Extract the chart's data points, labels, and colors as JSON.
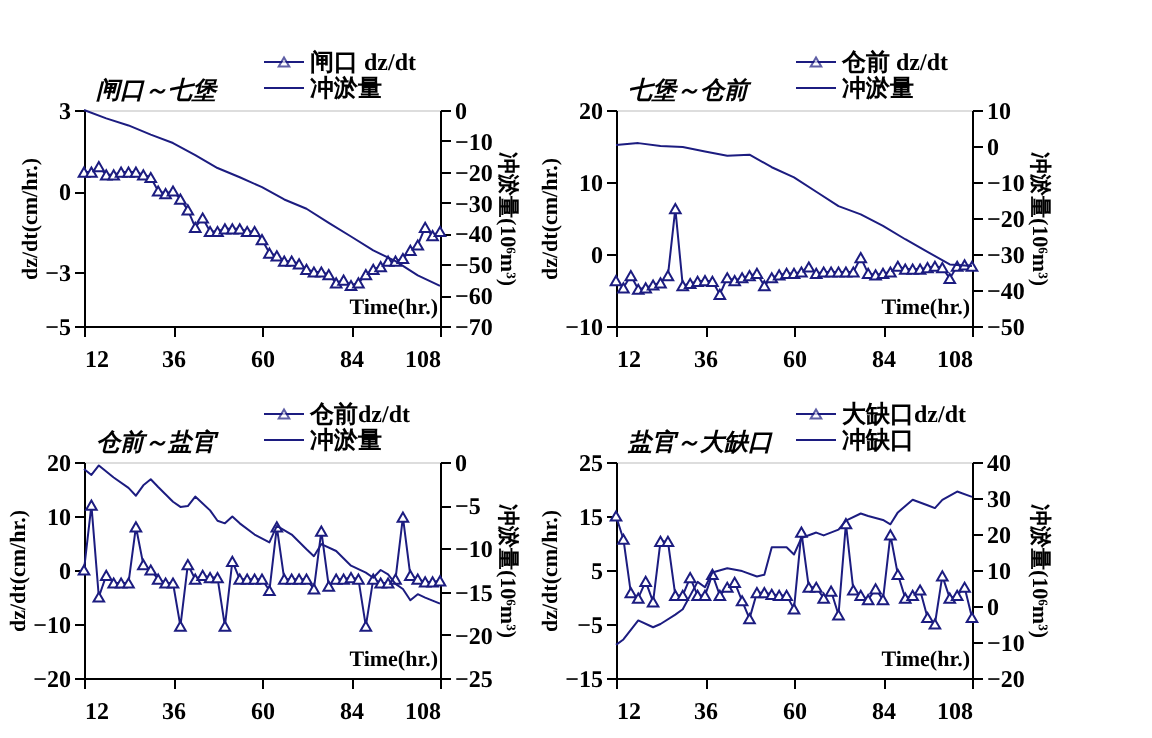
{
  "chart_data": [
    {
      "type": "line",
      "title": "闸口～七堡",
      "xlabel": "Time(hr.)",
      "ylabel": "dz/dt(cm/hr.)",
      "y2label": "冲淤量(10⁶m³)",
      "legend": "top right",
      "xlim": [
        12,
        108
      ],
      "xticks": [
        12,
        36,
        60,
        84,
        108
      ],
      "ylim": [
        -5,
        3
      ],
      "yticks": [
        3,
        0,
        -3,
        -5
      ],
      "y2lim": [
        -70,
        0
      ],
      "y2ticks": [
        0,
        -10,
        -20,
        -30,
        -40,
        -50,
        -60,
        -70
      ],
      "series": [
        {
          "name": "闸口 dz/dt",
          "color": "#1c1c80",
          "marker": "triangle",
          "x": [
            12,
            14,
            16,
            18,
            20,
            22,
            24,
            26,
            28,
            30,
            32,
            34,
            36,
            38,
            40,
            42,
            44,
            46,
            48,
            50,
            52,
            54,
            56,
            58,
            60,
            62,
            64,
            66,
            68,
            70,
            72,
            74,
            76,
            78,
            80,
            82,
            84,
            86,
            88,
            90,
            92,
            94,
            96,
            98,
            100,
            102,
            104,
            106,
            108
          ],
          "values": [
            0.7,
            0.7,
            0.9,
            0.6,
            0.6,
            0.7,
            0.7,
            0.7,
            0.6,
            0.5,
            0.0,
            -0.1,
            0.0,
            -0.3,
            -0.7,
            -1.35,
            -1.0,
            -1.5,
            -1.5,
            -1.4,
            -1.4,
            -1.4,
            -1.5,
            -1.5,
            -1.8,
            -2.3,
            -2.4,
            -2.6,
            -2.6,
            -2.7,
            -2.9,
            -3.0,
            -3.0,
            -3.1,
            -3.4,
            -3.3,
            -3.5,
            -3.4,
            -3.1,
            -2.9,
            -2.8,
            -2.6,
            -2.6,
            -2.5,
            -2.2,
            -2.0,
            -1.35,
            -1.65,
            -1.5
          ]
        },
        {
          "name": "冲淤量",
          "color": "#1c1c80",
          "axis": "y2",
          "x": [
            12,
            18,
            24,
            30,
            36,
            42,
            48,
            54,
            60,
            66,
            72,
            78,
            84,
            90,
            96,
            102,
            108
          ],
          "values": [
            0,
            -2.7,
            -5,
            -8,
            -10.7,
            -14.6,
            -18.8,
            -21.8,
            -25,
            -29,
            -32,
            -36.6,
            -41,
            -45.5,
            -49,
            -53.6,
            -57
          ]
        }
      ]
    },
    {
      "type": "line",
      "title": "七堡～仓前",
      "xlabel": "Time(hr.)",
      "ylabel": "dz/dt(cm/hr.)",
      "y2label": "冲淤量(10⁶m³)",
      "legend": "top right",
      "xlim": [
        12,
        108
      ],
      "xticks": [
        12,
        36,
        60,
        84,
        108
      ],
      "ylim": [
        -10,
        20
      ],
      "yticks": [
        -10,
        0,
        10,
        20
      ],
      "y2lim": [
        -50,
        10
      ],
      "y2ticks": [
        10,
        0,
        -10,
        -20,
        -30,
        -40,
        -50
      ],
      "series": [
        {
          "name": "仓前 dz/dt",
          "color": "#1c1c80",
          "marker": "triangle",
          "x": [
            12,
            14,
            16,
            18,
            20,
            22,
            24,
            26,
            28,
            30,
            32,
            34,
            36,
            38,
            40,
            42,
            44,
            46,
            48,
            50,
            52,
            54,
            56,
            58,
            60,
            62,
            64,
            66,
            68,
            70,
            72,
            74,
            76,
            78,
            80,
            82,
            84,
            86,
            88,
            90,
            92,
            94,
            96,
            98,
            100,
            102,
            104,
            106,
            108
          ],
          "values": [
            -3.7,
            -4.7,
            -3.0,
            -4.9,
            -4.7,
            -4.3,
            -4.0,
            -3.0,
            6.3,
            -4.4,
            -4.1,
            -3.8,
            -3.7,
            -3.8,
            -5.6,
            -3.3,
            -3.7,
            -3.3,
            -3.0,
            -2.7,
            -4.4,
            -3.3,
            -2.9,
            -2.7,
            -2.7,
            -2.5,
            -1.8,
            -2.7,
            -2.5,
            -2.5,
            -2.5,
            -2.5,
            -2.5,
            -0.5,
            -2.7,
            -2.9,
            -2.7,
            -2.5,
            -1.7,
            -2.1,
            -2.1,
            -2.1,
            -1.9,
            -1.7,
            -1.9,
            -3.4,
            -1.7,
            -1.5,
            -1.7
          ]
        },
        {
          "name": "冲淤量",
          "color": "#1c1c80",
          "axis": "y2",
          "x": [
            12,
            18,
            24,
            30,
            36,
            42,
            48,
            54,
            60,
            66,
            72,
            78,
            84,
            90,
            96,
            102,
            108
          ],
          "values": [
            0.3,
            0.8,
            0,
            -0.3,
            -1.5,
            -2.7,
            -2.4,
            -5.9,
            -8.7,
            -12.7,
            -16.7,
            -19,
            -22.2,
            -25.9,
            -29.4,
            -32.9,
            -33.3
          ]
        }
      ]
    },
    {
      "type": "line",
      "title": "仓前～盐官",
      "xlabel": "Time(hr.)",
      "ylabel": "dz/dt(cm/hr.)",
      "y2label": "冲淤量(10⁶m³)",
      "legend": "top right",
      "xlim": [
        12,
        108
      ],
      "xticks": [
        12,
        36,
        60,
        84,
        108
      ],
      "ylim": [
        -20,
        20
      ],
      "yticks": [
        -20,
        -10,
        0,
        10,
        20
      ],
      "y2lim": [
        -25,
        0
      ],
      "y2ticks": [
        0,
        -5,
        -10,
        -15,
        -20,
        -25
      ],
      "series": [
        {
          "name": "仓前dz/dt",
          "color": "#1c1c80",
          "marker": "triangle",
          "x": [
            12,
            14,
            16,
            18,
            20,
            22,
            24,
            26,
            28,
            30,
            32,
            34,
            36,
            38,
            40,
            42,
            44,
            46,
            48,
            50,
            52,
            54,
            56,
            58,
            60,
            62,
            64,
            66,
            68,
            70,
            72,
            74,
            76,
            78,
            80,
            82,
            84,
            86,
            88,
            90,
            92,
            94,
            96,
            98,
            100,
            102,
            104,
            106,
            108
          ],
          "values": [
            0,
            12,
            -5,
            -1,
            -2.4,
            -2.4,
            -2.4,
            8,
            1,
            0,
            -1.7,
            -2.4,
            -2.4,
            -10.4,
            1,
            -1.7,
            -1,
            -1.4,
            -1.4,
            -10.4,
            1.6,
            -1.7,
            -1.7,
            -1.7,
            -1.7,
            -3.8,
            8,
            -1.7,
            -1.7,
            -1.7,
            -1.7,
            -3.5,
            7.2,
            -3,
            -1.7,
            -1.7,
            -1.4,
            -1.7,
            -10.4,
            -1.7,
            -2.4,
            -2.4,
            -1.7,
            9.8,
            -1,
            -1.7,
            -2.2,
            -2.2,
            -2
          ]
        },
        {
          "name": "冲淤量",
          "color": "#1c1c80",
          "axis": "y2",
          "x": [
            12,
            14,
            16,
            20,
            24,
            26,
            28,
            30,
            32,
            36,
            38,
            40,
            42,
            46,
            48,
            50,
            52,
            54,
            58,
            62,
            64,
            68,
            72,
            74,
            76,
            80,
            84,
            88,
            90,
            92,
            94,
            96,
            98,
            100,
            102,
            104,
            108
          ],
          "values": [
            -0.8,
            -1.5,
            -0.4,
            -1.8,
            -3,
            -3.9,
            -2.7,
            -2,
            -2.9,
            -4.6,
            -5.2,
            -5.1,
            -4,
            -5.6,
            -6.8,
            -7.1,
            -6.3,
            -7.1,
            -8.4,
            -9.3,
            -7.4,
            -8.4,
            -10.1,
            -10.9,
            -9.5,
            -10.3,
            -12,
            -12.8,
            -13.4,
            -12.5,
            -13,
            -14.1,
            -14.7,
            -16,
            -15.3,
            -15.7,
            -16.4
          ]
        }
      ]
    },
    {
      "type": "line",
      "title": "盐官～大缺口",
      "xlabel": "Time(hr.)",
      "ylabel": "dz/dt(cm/hr.)",
      "y2label": "冲淤量(10⁶m³)",
      "legend": "top right",
      "xlim": [
        12,
        108
      ],
      "xticks": [
        12,
        36,
        60,
        84,
        108
      ],
      "ylim": [
        -15,
        25
      ],
      "yticks": [
        -15,
        -5,
        5,
        15,
        25
      ],
      "y2lim": [
        -20,
        40
      ],
      "y2ticks": [
        40,
        30,
        20,
        10,
        0,
        -10,
        -20
      ],
      "series": [
        {
          "name": "大缺口dz/dt",
          "color": "#1c1c80",
          "marker": "triangle",
          "x": [
            12,
            14,
            16,
            18,
            20,
            22,
            24,
            26,
            28,
            30,
            32,
            34,
            36,
            38,
            40,
            42,
            44,
            46,
            48,
            50,
            52,
            54,
            56,
            58,
            60,
            62,
            64,
            66,
            68,
            70,
            72,
            74,
            76,
            78,
            80,
            82,
            84,
            86,
            88,
            90,
            92,
            94,
            96,
            98,
            100,
            102,
            104,
            106,
            108
          ],
          "values": [
            15,
            10.7,
            0.8,
            -0.2,
            2.9,
            -0.9,
            10.3,
            10.3,
            0.3,
            0.3,
            3.6,
            0.3,
            0.3,
            4.2,
            0.3,
            1.8,
            2.7,
            -0.7,
            -4,
            0.8,
            0.8,
            0.5,
            0.3,
            0.3,
            -2.2,
            12,
            1.8,
            1.8,
            -0.2,
            1.1,
            -3.3,
            13.6,
            1.3,
            0.3,
            -0.5,
            1.5,
            -0.5,
            11.5,
            4.2,
            -0.2,
            0.3,
            1.3,
            -3.8,
            -5,
            3.9,
            -0.2,
            0.3,
            1.8,
            -3.8
          ]
        },
        {
          "name": "冲缺口",
          "color": "#1c1c80",
          "axis": "y2",
          "x": [
            12,
            14,
            18,
            22,
            24,
            28,
            30,
            34,
            36,
            38,
            42,
            46,
            50,
            52,
            54,
            58,
            60,
            62,
            66,
            68,
            72,
            74,
            78,
            80,
            84,
            86,
            88,
            92,
            96,
            98,
            100,
            104,
            108
          ],
          "values": [
            -10.8,
            -9.3,
            -4,
            -5.9,
            -5,
            -2.4,
            -0.9,
            6.7,
            5.2,
            9.3,
            10.5,
            9.7,
            8.2,
            8.7,
            16.3,
            16.3,
            14.3,
            18.9,
            20.4,
            19.6,
            21.2,
            23.7,
            25.7,
            25,
            23.9,
            22.7,
            26,
            29.5,
            28,
            27.2,
            29.5,
            31.8,
            30.3
          ]
        }
      ]
    }
  ]
}
